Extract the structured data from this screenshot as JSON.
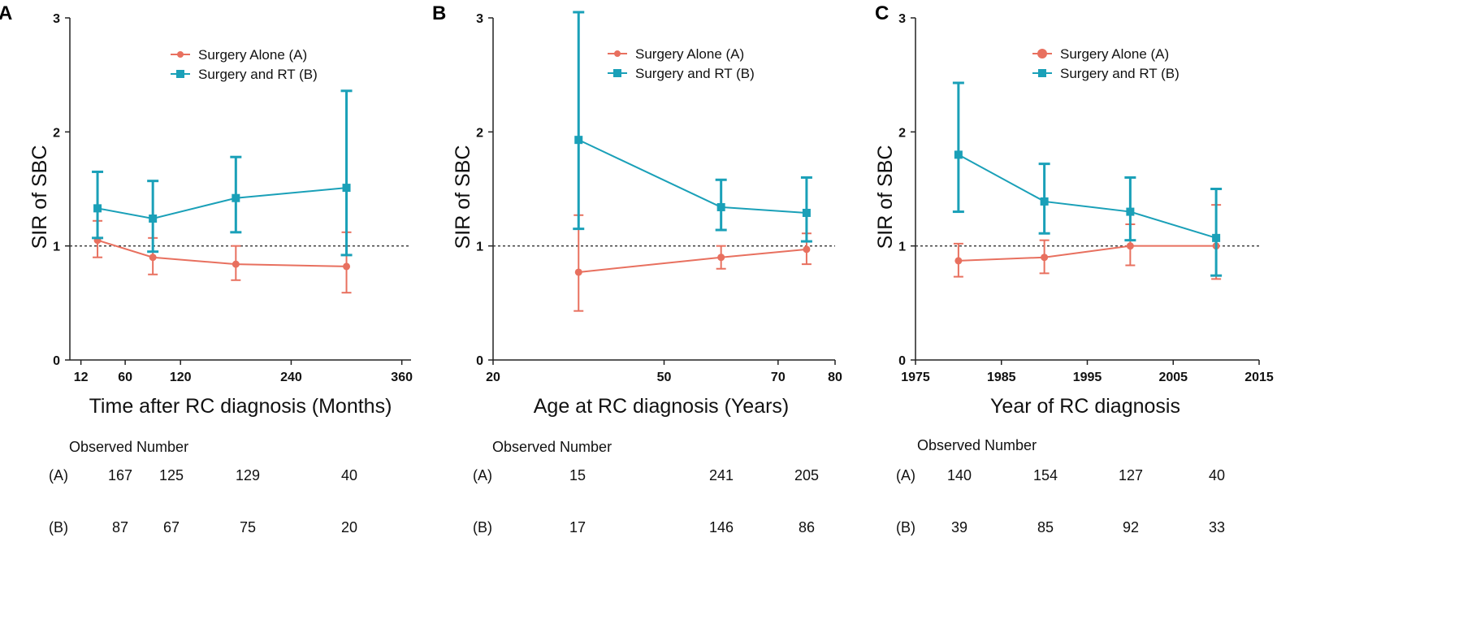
{
  "colors": {
    "surgery_alone": "#e8705f",
    "surgery_rt": "#1aa0b8",
    "axis": "#222222",
    "reference": "#333333"
  },
  "chart_data": [
    {
      "panel_label": "A",
      "type": "line",
      "title": "",
      "xlabel": "Time after RC diagnosis (Months)",
      "ylabel": "SIR of SBC",
      "xlim": [
        0,
        370
      ],
      "ylim": [
        0,
        3
      ],
      "xticks": [
        12,
        60,
        120,
        240,
        360
      ],
      "xtick_labels": [
        "12",
        "60",
        "120",
        "240",
        "360"
      ],
      "xtick_positions": [
        12,
        60,
        120,
        240,
        360
      ],
      "yticks": [
        0,
        1,
        2,
        3
      ],
      "reference_line": 1,
      "legend": "top-center",
      "legend_markers": [
        "circle",
        "square"
      ],
      "series": [
        {
          "name": "Surgery Alone (A)",
          "marker": "circle",
          "x": [
            30,
            90,
            180,
            300
          ],
          "y": [
            1.05,
            0.9,
            0.84,
            0.82
          ],
          "lower": [
            0.9,
            0.75,
            0.7,
            0.59
          ],
          "upper": [
            1.22,
            1.07,
            1.0,
            1.12
          ]
        },
        {
          "name": "Surgery and RT (B)",
          "marker": "square",
          "x": [
            30,
            90,
            180,
            300
          ],
          "y": [
            1.33,
            1.24,
            1.42,
            1.51
          ],
          "lower": [
            1.07,
            0.95,
            1.12,
            0.92
          ],
          "upper": [
            1.65,
            1.57,
            1.78,
            2.36
          ]
        }
      ],
      "observed_header": "Observed Number",
      "observed": [
        {
          "label": "(A)",
          "values": [
            "167",
            "125",
            "129",
            "40"
          ]
        },
        {
          "label": "(B)",
          "values": [
            "87",
            "67",
            "75",
            "20"
          ]
        }
      ]
    },
    {
      "panel_label": "B",
      "type": "line",
      "title": "",
      "xlabel": "Age at RC diagnosis (Years)",
      "ylabel": "SIR of SBC",
      "xlim": [
        20,
        80
      ],
      "ylim": [
        0,
        3
      ],
      "xticks": [
        20,
        50,
        70,
        80
      ],
      "xtick_labels": [
        "20",
        "50",
        "70",
        "80"
      ],
      "xtick_positions": [
        20,
        50,
        70,
        80
      ],
      "yticks": [
        0,
        1,
        2,
        3
      ],
      "reference_line": 1,
      "legend": "top-center",
      "legend_markers": [
        "circle",
        "square"
      ],
      "series": [
        {
          "name": "Surgery Alone (A)",
          "marker": "circle",
          "x": [
            35,
            60,
            75
          ],
          "y": [
            0.77,
            0.9,
            0.97
          ],
          "lower": [
            0.43,
            0.8,
            0.84
          ],
          "upper": [
            1.27,
            1.0,
            1.11
          ]
        },
        {
          "name": "Surgery and RT (B)",
          "marker": "square",
          "x": [
            35,
            60,
            75
          ],
          "y": [
            1.93,
            1.34,
            1.29
          ],
          "lower": [
            1.15,
            1.14,
            1.04
          ],
          "upper": [
            3.05,
            1.58,
            1.6
          ]
        }
      ],
      "observed_header": "Observed Number",
      "observed": [
        {
          "label": "(A)",
          "values": [
            "15",
            "241",
            "205"
          ]
        },
        {
          "label": "(B)",
          "values": [
            "17",
            "146",
            "86"
          ]
        }
      ]
    },
    {
      "panel_label": "C",
      "type": "line",
      "title": "",
      "xlabel": "Year of RC diagnosis",
      "ylabel": "SIR of SBC",
      "xlim": [
        1975,
        2015
      ],
      "ylim": [
        0,
        3
      ],
      "xticks": [
        1975,
        1985,
        1995,
        2005,
        2015
      ],
      "xtick_labels": [
        "1975",
        "1985",
        "1995",
        "2005",
        "2015"
      ],
      "xtick_positions": [
        1975,
        1985,
        1995,
        2005,
        2015
      ],
      "yticks": [
        0,
        1,
        2,
        3
      ],
      "reference_line": 1,
      "legend": "top-center",
      "legend_markers": [
        "circle-large",
        "square"
      ],
      "series": [
        {
          "name": "Surgery Alone (A)",
          "marker": "circle",
          "x": [
            1980,
            1990,
            2000,
            2010
          ],
          "y": [
            0.87,
            0.9,
            1.0,
            1.0
          ],
          "lower": [
            0.73,
            0.76,
            0.83,
            0.71
          ],
          "upper": [
            1.02,
            1.05,
            1.19,
            1.36
          ]
        },
        {
          "name": "Surgery and RT (B)",
          "marker": "square",
          "x": [
            1980,
            1990,
            2000,
            2010
          ],
          "y": [
            1.8,
            1.39,
            1.3,
            1.07
          ],
          "lower": [
            1.3,
            1.11,
            1.05,
            0.74
          ],
          "upper": [
            2.43,
            1.72,
            1.6,
            1.5
          ]
        }
      ],
      "observed_header": "Observed Number",
      "observed": [
        {
          "label": "(A)",
          "values": [
            "140",
            "154",
            "127",
            "40"
          ]
        },
        {
          "label": "(B)",
          "values": [
            "39",
            "85",
            "92",
            "33"
          ]
        }
      ]
    }
  ]
}
